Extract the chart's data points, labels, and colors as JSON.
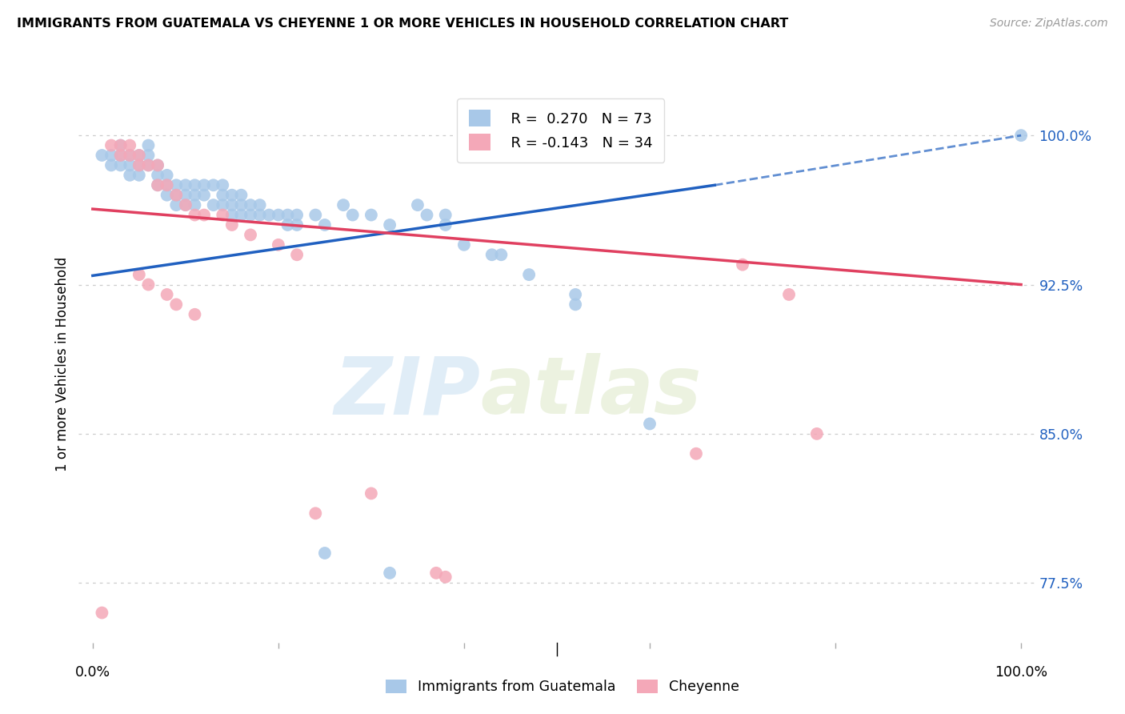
{
  "title": "IMMIGRANTS FROM GUATEMALA VS CHEYENNE 1 OR MORE VEHICLES IN HOUSEHOLD CORRELATION CHART",
  "source": "Source: ZipAtlas.com",
  "ylabel": "1 or more Vehicles in Household",
  "ylim": [
    0.745,
    1.025
  ],
  "xlim": [
    -0.015,
    1.015
  ],
  "yticks": [
    0.775,
    0.85,
    0.925,
    1.0
  ],
  "ytick_labels": [
    "77.5%",
    "85.0%",
    "92.5%",
    "100.0%"
  ],
  "legend_blue_r": "R =  0.270",
  "legend_blue_n": "N = 73",
  "legend_pink_r": "R = -0.143",
  "legend_pink_n": "N = 34",
  "blue_color": "#a8c8e8",
  "pink_color": "#f4a8b8",
  "blue_line_color": "#2060c0",
  "pink_line_color": "#e04060",
  "watermark_zip": "ZIP",
  "watermark_atlas": "atlas",
  "blue_scatter": [
    [
      0.01,
      0.99
    ],
    [
      0.02,
      0.99
    ],
    [
      0.02,
      0.985
    ],
    [
      0.03,
      0.995
    ],
    [
      0.03,
      0.99
    ],
    [
      0.03,
      0.985
    ],
    [
      0.04,
      0.99
    ],
    [
      0.04,
      0.985
    ],
    [
      0.04,
      0.98
    ],
    [
      0.05,
      0.99
    ],
    [
      0.05,
      0.985
    ],
    [
      0.05,
      0.98
    ],
    [
      0.06,
      0.995
    ],
    [
      0.06,
      0.99
    ],
    [
      0.06,
      0.985
    ],
    [
      0.07,
      0.985
    ],
    [
      0.07,
      0.98
    ],
    [
      0.07,
      0.975
    ],
    [
      0.08,
      0.98
    ],
    [
      0.08,
      0.975
    ],
    [
      0.08,
      0.97
    ],
    [
      0.09,
      0.975
    ],
    [
      0.09,
      0.97
    ],
    [
      0.09,
      0.965
    ],
    [
      0.1,
      0.975
    ],
    [
      0.1,
      0.97
    ],
    [
      0.1,
      0.965
    ],
    [
      0.11,
      0.975
    ],
    [
      0.11,
      0.97
    ],
    [
      0.11,
      0.965
    ],
    [
      0.12,
      0.975
    ],
    [
      0.12,
      0.97
    ],
    [
      0.13,
      0.975
    ],
    [
      0.13,
      0.965
    ],
    [
      0.14,
      0.975
    ],
    [
      0.14,
      0.97
    ],
    [
      0.14,
      0.965
    ],
    [
      0.15,
      0.97
    ],
    [
      0.15,
      0.965
    ],
    [
      0.15,
      0.96
    ],
    [
      0.16,
      0.97
    ],
    [
      0.16,
      0.965
    ],
    [
      0.16,
      0.96
    ],
    [
      0.17,
      0.965
    ],
    [
      0.17,
      0.96
    ],
    [
      0.18,
      0.965
    ],
    [
      0.18,
      0.96
    ],
    [
      0.19,
      0.96
    ],
    [
      0.2,
      0.96
    ],
    [
      0.21,
      0.96
    ],
    [
      0.21,
      0.955
    ],
    [
      0.22,
      0.96
    ],
    [
      0.22,
      0.955
    ],
    [
      0.24,
      0.96
    ],
    [
      0.25,
      0.955
    ],
    [
      0.27,
      0.965
    ],
    [
      0.28,
      0.96
    ],
    [
      0.3,
      0.96
    ],
    [
      0.32,
      0.955
    ],
    [
      0.35,
      0.965
    ],
    [
      0.36,
      0.96
    ],
    [
      0.38,
      0.96
    ],
    [
      0.38,
      0.955
    ],
    [
      0.4,
      0.945
    ],
    [
      0.43,
      0.94
    ],
    [
      0.44,
      0.94
    ],
    [
      0.47,
      0.93
    ],
    [
      0.52,
      0.92
    ],
    [
      0.52,
      0.915
    ],
    [
      0.6,
      0.855
    ],
    [
      0.25,
      0.79
    ],
    [
      0.32,
      0.78
    ],
    [
      1.0,
      1.0
    ]
  ],
  "pink_scatter": [
    [
      0.02,
      0.995
    ],
    [
      0.03,
      0.995
    ],
    [
      0.04,
      0.995
    ],
    [
      0.03,
      0.99
    ],
    [
      0.04,
      0.99
    ],
    [
      0.05,
      0.99
    ],
    [
      0.05,
      0.985
    ],
    [
      0.06,
      0.985
    ],
    [
      0.07,
      0.985
    ],
    [
      0.07,
      0.975
    ],
    [
      0.08,
      0.975
    ],
    [
      0.09,
      0.97
    ],
    [
      0.1,
      0.965
    ],
    [
      0.11,
      0.96
    ],
    [
      0.12,
      0.96
    ],
    [
      0.14,
      0.96
    ],
    [
      0.15,
      0.955
    ],
    [
      0.17,
      0.95
    ],
    [
      0.2,
      0.945
    ],
    [
      0.22,
      0.94
    ],
    [
      0.05,
      0.93
    ],
    [
      0.06,
      0.925
    ],
    [
      0.08,
      0.92
    ],
    [
      0.09,
      0.915
    ],
    [
      0.11,
      0.91
    ],
    [
      0.7,
      0.935
    ],
    [
      0.75,
      0.92
    ],
    [
      0.78,
      0.85
    ],
    [
      0.65,
      0.84
    ],
    [
      0.3,
      0.82
    ],
    [
      0.24,
      0.81
    ],
    [
      0.37,
      0.78
    ],
    [
      0.38,
      0.778
    ],
    [
      0.01,
      0.76
    ]
  ],
  "blue_trendline_solid": [
    [
      0.0,
      0.9295
    ],
    [
      0.67,
      0.975
    ]
  ],
  "blue_trendline_dashed": [
    [
      0.67,
      0.975
    ],
    [
      1.0,
      1.0
    ]
  ],
  "pink_trendline": [
    [
      0.0,
      0.963
    ],
    [
      1.0,
      0.925
    ]
  ]
}
